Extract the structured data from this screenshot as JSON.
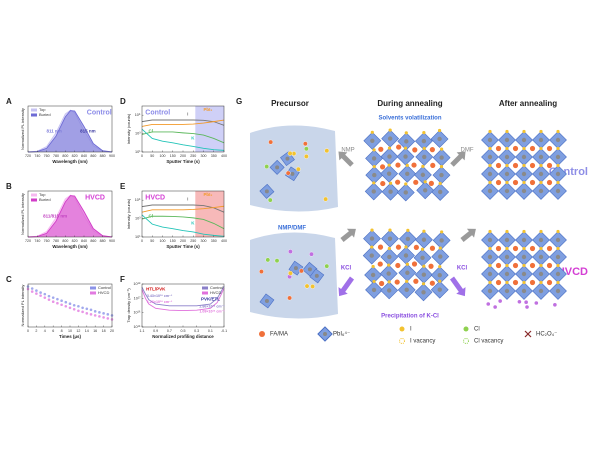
{
  "chart_data": [
    {
      "type": "line",
      "label": "A",
      "x_label": "Wavelength (nm)",
      "y_label": "Normalized PL intensity",
      "x": [
        720,
        740,
        760,
        780,
        800,
        811,
        820,
        840,
        860,
        880,
        900
      ],
      "series": [
        {
          "name": "Top",
          "color": "#c6c2f2",
          "fill": true,
          "values": [
            0.0,
            0.02,
            0.13,
            0.46,
            0.91,
            1.0,
            0.94,
            0.51,
            0.15,
            0.02,
            0.0
          ]
        },
        {
          "name": "Buried",
          "color": "#6e6bd6",
          "fill": true,
          "values": [
            0.0,
            0.01,
            0.09,
            0.38,
            0.84,
            0.99,
            0.98,
            0.61,
            0.2,
            0.03,
            0.0
          ]
        }
      ],
      "xlim": [
        720,
        900
      ],
      "ylim": [
        0,
        1.1
      ],
      "xticks": [
        720,
        740,
        760,
        780,
        800,
        820,
        840,
        860,
        880,
        900
      ],
      "legend": "upper left",
      "annotations": [
        "811 nm",
        "815 nm",
        "Control"
      ]
    },
    {
      "type": "line",
      "label": "B",
      "x_label": "Wavelength (nm)",
      "y_label": "Normalized PL intensity",
      "x": [
        720,
        740,
        760,
        780,
        800,
        811,
        820,
        840,
        860,
        880,
        900
      ],
      "series": [
        {
          "name": "Top",
          "color": "#f6b8f0",
          "fill": true,
          "values": [
            0.0,
            0.02,
            0.13,
            0.46,
            0.91,
            1.0,
            0.94,
            0.51,
            0.15,
            0.02,
            0.0
          ]
        },
        {
          "name": "Buried",
          "color": "#d23cc8",
          "fill": true,
          "values": [
            0.0,
            0.01,
            0.09,
            0.38,
            0.84,
            0.99,
            0.98,
            0.61,
            0.2,
            0.03,
            0.0
          ]
        }
      ],
      "xlim": [
        720,
        900
      ],
      "ylim": [
        0,
        1.1
      ],
      "xticks": [
        720,
        740,
        760,
        780,
        800,
        820,
        840,
        860,
        880,
        900
      ],
      "legend": "upper left",
      "annotations": [
        "811/815 nm",
        "HVCD"
      ]
    },
    {
      "type": "scatter",
      "label": "C",
      "x_label": "Times (μs)",
      "y_label": "Normalized PL intensity",
      "x": [
        0,
        1,
        2,
        3,
        4,
        5,
        6,
        7,
        8,
        9,
        10,
        11,
        12,
        13,
        14,
        15,
        16,
        17,
        18,
        19,
        20
      ],
      "series": [
        {
          "name": "Control",
          "color": "#8b93e8",
          "values": [
            1.0,
            0.96,
            0.92,
            0.88,
            0.85,
            0.81,
            0.78,
            0.75,
            0.72,
            0.69,
            0.66,
            0.63,
            0.61,
            0.58,
            0.56,
            0.54,
            0.51,
            0.49,
            0.47,
            0.45,
            0.43
          ]
        },
        {
          "name": "HVCD",
          "color": "#e27ae0",
          "values": [
            0.95,
            0.9,
            0.86,
            0.82,
            0.78,
            0.74,
            0.7,
            0.67,
            0.64,
            0.61,
            0.58,
            0.55,
            0.52,
            0.5,
            0.47,
            0.45,
            0.43,
            0.41,
            0.39,
            0.37,
            0.35
          ]
        }
      ],
      "xlim": [
        0,
        20
      ],
      "ylim": [
        0.2,
        1.05
      ],
      "xticks": [
        0,
        2,
        4,
        6,
        8,
        10,
        12,
        14,
        16,
        18,
        20
      ],
      "legend": "upper right",
      "annotations": []
    },
    {
      "type": "line",
      "label": "D",
      "x_label": "Sputter Time (s)",
      "y_label": "Intensity (counts)",
      "log_y": true,
      "x": [
        0,
        50,
        100,
        150,
        200,
        250,
        300,
        350,
        400
      ],
      "series": [
        {
          "name": "I",
          "color": "#777777",
          "values": [
            20000,
            30000,
            30000,
            30000,
            30000,
            30000,
            28000,
            20000,
            8000
          ]
        },
        {
          "name": "PbI₂",
          "color": "#f39a2a",
          "values": [
            6000,
            10000,
            10000,
            10000,
            10000,
            11000,
            14000,
            20000,
            30000
          ]
        },
        {
          "name": "Cl",
          "color": "#5cb85c",
          "values": [
            800,
            1500,
            1500,
            1500,
            1200,
            1000,
            700,
            300,
            100
          ]
        },
        {
          "name": "K",
          "color": "#23c4b8",
          "values": [
            3000,
            300,
            150,
            100,
            60,
            40,
            25,
            18,
            15
          ]
        }
      ],
      "xlim": [
        0,
        400
      ],
      "ylim": [
        10,
        1000000
      ],
      "xticks": [
        0,
        50,
        100,
        150,
        200,
        250,
        300,
        350,
        400
      ],
      "yticks": [
        {
          "value": 10,
          "label": "10¹"
        },
        {
          "value": 1000,
          "label": "10³"
        },
        {
          "value": 100000,
          "label": "10⁵"
        }
      ],
      "shaded_range": [
        260,
        400
      ],
      "shade_color": "#cfd0f7",
      "legend": "inline",
      "annotations": [
        "Control"
      ]
    },
    {
      "type": "line",
      "label": "E",
      "x_label": "Sputter Time (s)",
      "y_label": "Intensity (counts)",
      "log_y": true,
      "x": [
        0,
        50,
        100,
        150,
        200,
        250,
        300,
        350,
        400
      ],
      "series": [
        {
          "name": "I",
          "color": "#777777",
          "values": [
            20000,
            30000,
            30000,
            30000,
            30000,
            30000,
            26000,
            15000,
            5000
          ]
        },
        {
          "name": "PbI₂",
          "color": "#f39a2a",
          "values": [
            5000,
            9000,
            9000,
            9000,
            9000,
            10000,
            12000,
            16000,
            22000
          ]
        },
        {
          "name": "Cl",
          "color": "#5cb85c",
          "values": [
            900,
            1800,
            1800,
            1700,
            1500,
            1200,
            800,
            300,
            80
          ]
        },
        {
          "name": "K",
          "color": "#23c4b8",
          "values": [
            2500,
            250,
            120,
            80,
            50,
            35,
            20,
            15,
            12
          ]
        }
      ],
      "xlim": [
        0,
        400
      ],
      "ylim": [
        10,
        1000000
      ],
      "xticks": [
        0,
        50,
        100,
        150,
        200,
        250,
        300,
        350,
        400
      ],
      "yticks": [
        {
          "value": 10,
          "label": "10¹"
        },
        {
          "value": 1000,
          "label": "10³"
        },
        {
          "value": 100000,
          "label": "10⁵"
        }
      ],
      "shaded_range": [
        260,
        400
      ],
      "shade_color": "#f7b9b9",
      "legend": "inline",
      "annotations": [
        "HVCD"
      ]
    },
    {
      "type": "line",
      "label": "F",
      "x_label": "Normalized profiling distance",
      "y_label": "Trap density (cm⁻³)",
      "log_y": true,
      "x": [
        1.1,
        1.05,
        1.0,
        0.9,
        0.7,
        0.5,
        0.3,
        0.1,
        0.0,
        -0.05,
        -0.1
      ],
      "series": [
        {
          "name": "Control",
          "color": "#8a7fc9",
          "values": [
            600000000000000000,
            200000000000000000,
            80000000000000000,
            40000000000000000,
            30000000000000000,
            30000000000000000,
            30000000000000000,
            40000000000000000,
            100000000000000000,
            250000000000000000,
            700000000000000000
          ]
        },
        {
          "name": "HVCD",
          "color": "#e070dc",
          "values": [
            400000000000000000,
            100000000000000000,
            40000000000000000,
            20000000000000000,
            15000000000000000,
            14000000000000000,
            15000000000000000,
            20000000000000000,
            50000000000000000,
            150000000000000000,
            500000000000000000
          ]
        }
      ],
      "xlim": [
        1.1,
        -0.1
      ],
      "ylim": [
        1000000000000000,
        1000000000000000000
      ],
      "xticks": [
        1.1,
        0.9,
        0.7,
        0.5,
        0.3,
        0.1,
        -0.1
      ],
      "yticks": [
        {
          "value": 1000000000000000,
          "label": "10¹⁵"
        },
        {
          "value": 10000000000000000,
          "label": "10¹⁶"
        },
        {
          "value": 100000000000000000,
          "label": "10¹⁷"
        },
        {
          "value": 1000000000000000000,
          "label": "10¹⁸"
        }
      ],
      "legend": "upper right",
      "annotations": [
        "HTL/PVK",
        "PVK/ETL",
        "3.43×10¹⁶ cm⁻³",
        "1.26×10¹⁶ cm⁻³",
        "2.86×10¹⁶ cm⁻³",
        "1.09×10¹⁶ cm⁻³"
      ]
    }
  ],
  "diagram": {
    "label": "G",
    "headers": [
      "Precursor",
      "During annealing",
      "After annealing"
    ],
    "row_labels": [
      "Control",
      "HVCD"
    ],
    "notes": {
      "solvents": "Solvents volatilization",
      "nmp": "NMP",
      "dmf": "DMF",
      "nmp_dmf": "NMP/DMF",
      "kcl_left": "KCl",
      "kcl_right": "KCl",
      "precipitation": "Precipitation of K-Cl"
    },
    "legend": [
      "FA/MA",
      "PbI₆⁴⁻",
      "I",
      "I vacancy",
      "Cl",
      "Cl vacancy",
      "HC₂O₄⁻"
    ]
  }
}
